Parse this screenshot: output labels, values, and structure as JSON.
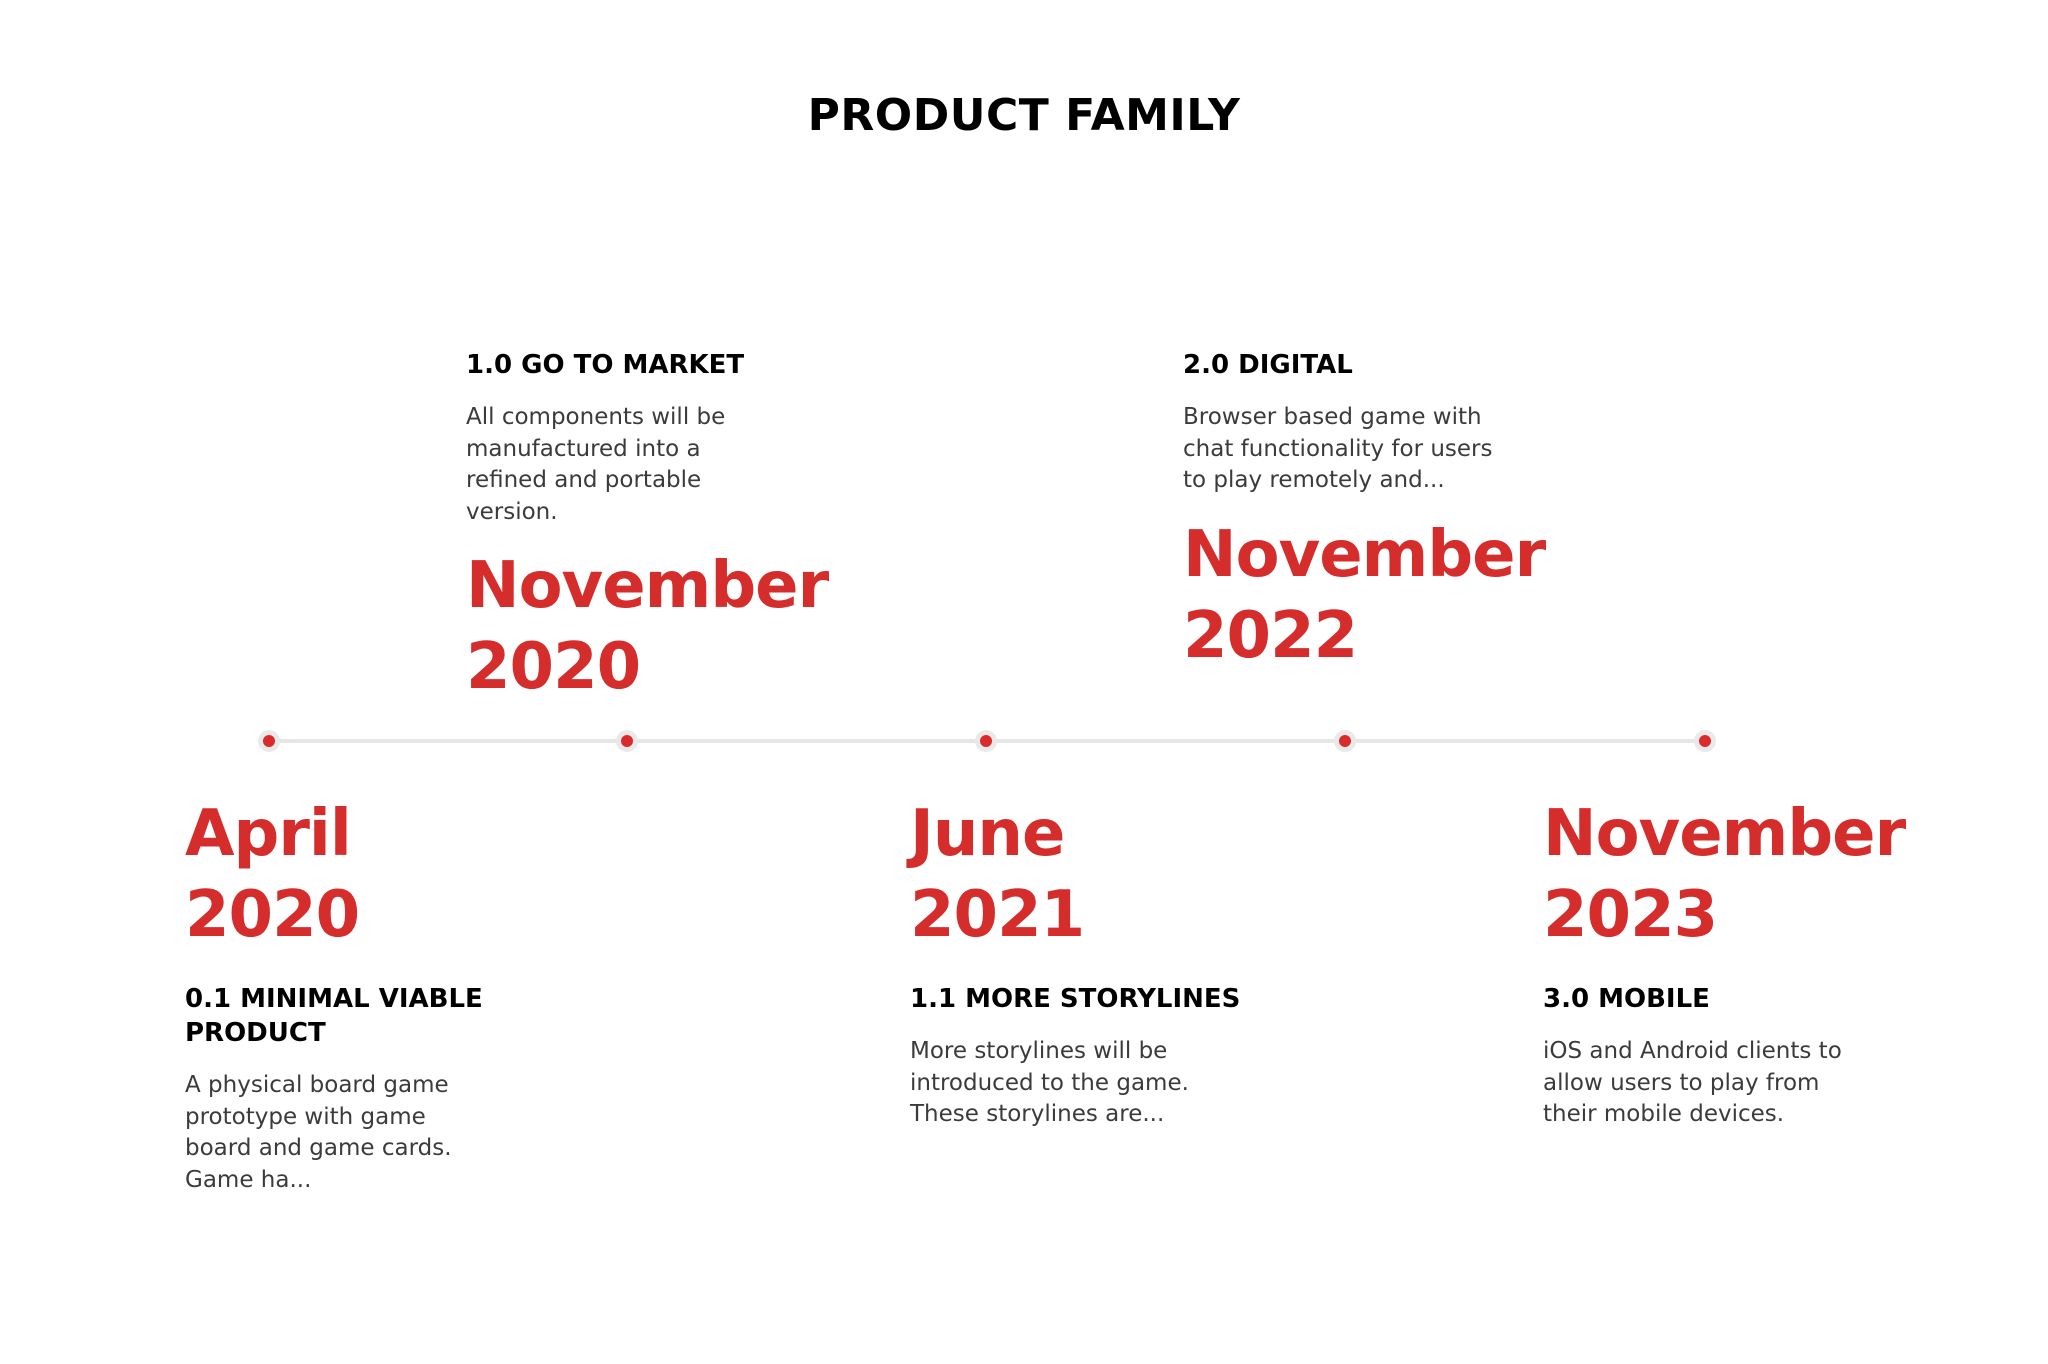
{
  "title": "PRODUCT FAMILY",
  "milestones": [
    {
      "date_month": "April",
      "date_year": "2020",
      "heading": "0.1 MINIMAL VIABLE PRODUCT",
      "description": "A physical board game prototype with game board and game cards. Game ha..."
    },
    {
      "date_month": "November",
      "date_year": "2020",
      "heading": "1.0 GO TO MARKET",
      "description": "All components will be manufactured into a refined and portable version."
    },
    {
      "date_month": "June",
      "date_year": "2021",
      "heading": "1.1 MORE STORYLINES",
      "description": "More storylines will be introduced to the game. These storylines are..."
    },
    {
      "date_month": "November",
      "date_year": "2022",
      "heading": "2.0 DIGITAL",
      "description": "Browser based game with chat functionality for users to play remotely and..."
    },
    {
      "date_month": "November",
      "date_year": "2023",
      "heading": "3.0 MOBILE",
      "description": "iOS and Android clients to allow users to play from their mobile devices."
    }
  ],
  "colors": {
    "accent": "#d42d2c",
    "line": "#e6e6e6",
    "text": "#000000",
    "body_text": "#3b3b3b"
  }
}
